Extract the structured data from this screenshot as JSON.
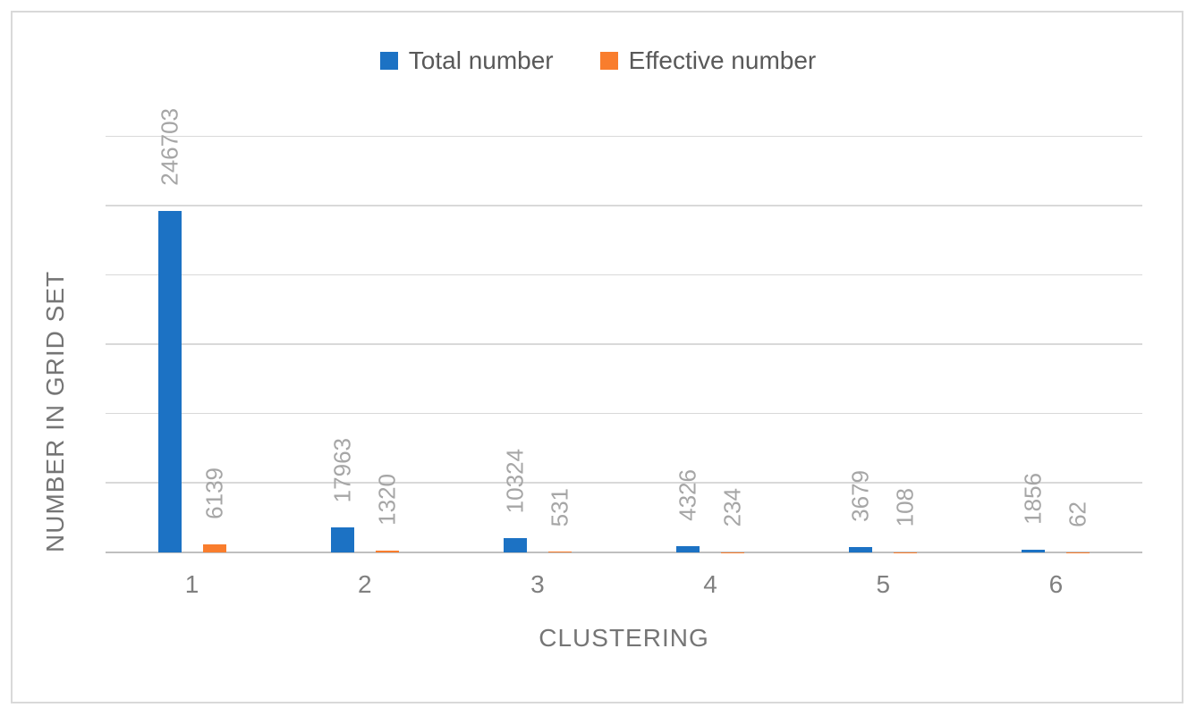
{
  "figure": {
    "background": "#ffffff",
    "border_color": "#d9d9d9"
  },
  "chart_data": {
    "type": "bar",
    "title": "",
    "categories": [
      "1",
      "2",
      "3",
      "4",
      "5",
      "6"
    ],
    "series": [
      {
        "name": "Total number",
        "color": "#1c72c4",
        "values": [
          246703,
          17963,
          10324,
          4326,
          3679,
          1856
        ]
      },
      {
        "name": "Effective number",
        "color": "#f97d2d",
        "values": [
          6139,
          1320,
          531,
          234,
          108,
          62
        ]
      }
    ],
    "xlabel": "CLUSTERING",
    "ylabel": "NUMBER IN GRID SET",
    "ylim": [
      0,
      300000
    ],
    "y_major_unit": 50000,
    "y_tick_labels_visible": false,
    "grid": true,
    "gridline_color": "#d9d9d9",
    "axis_line_color": "#bfbfbf",
    "legend_position": "top",
    "data_labels": {
      "visible": true,
      "rotation": -90,
      "color": "#a6a6a6"
    }
  }
}
